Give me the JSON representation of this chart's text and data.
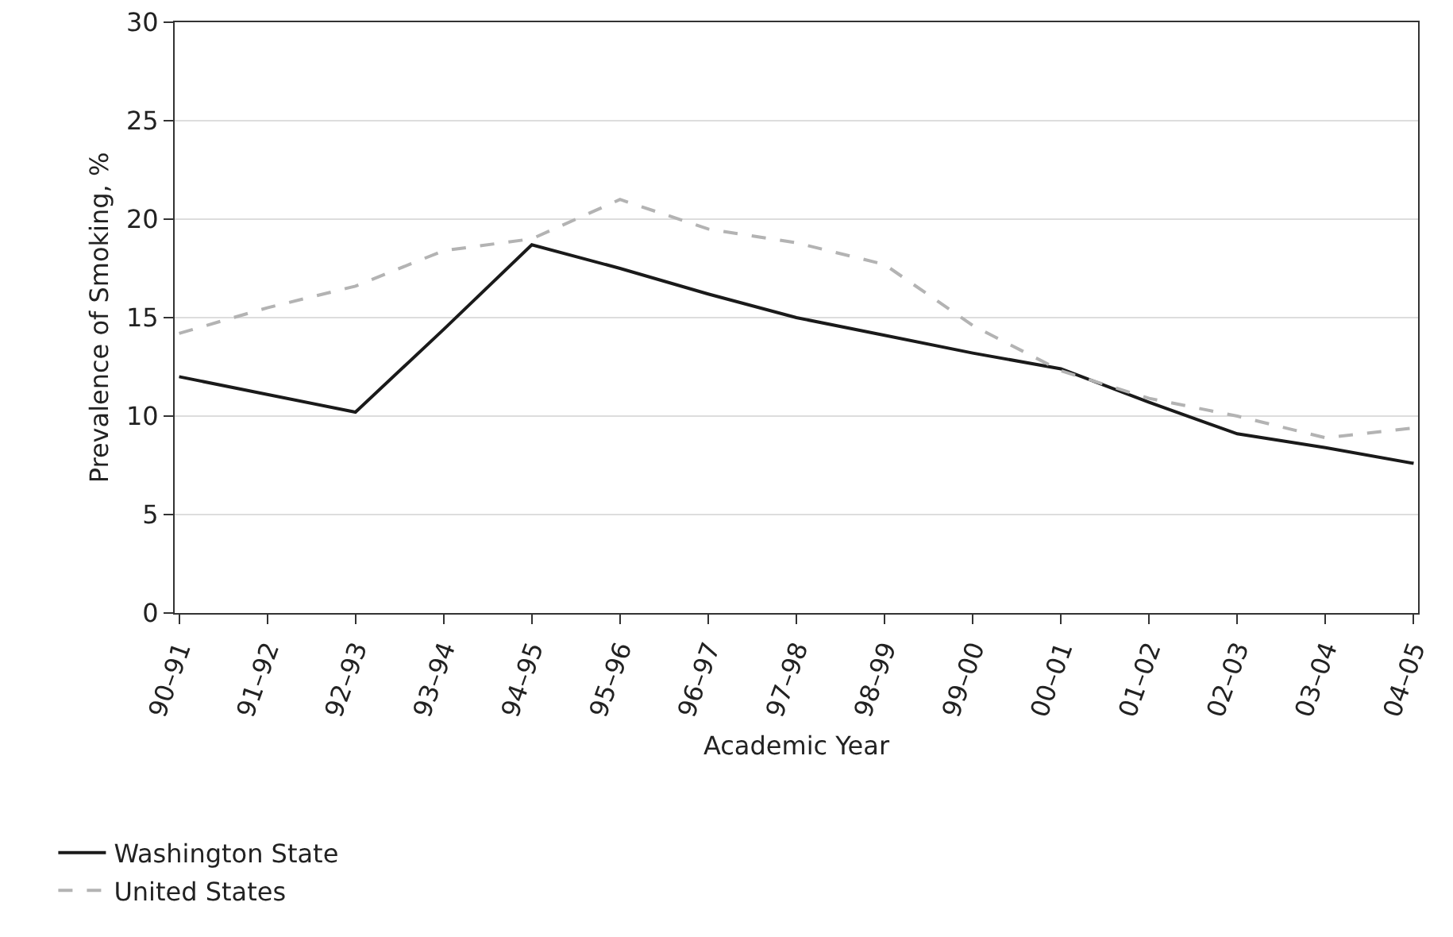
{
  "chart_data": {
    "type": "line",
    "xlabel": "Academic Year",
    "ylabel": "Prevalence of Smoking, %",
    "categories": [
      "90–91",
      "91–92",
      "92–93",
      "93–94",
      "94–95",
      "95–96",
      "96–97",
      "97–98",
      "98–99",
      "99–00",
      "00–01",
      "01–02",
      "02–03",
      "03–04",
      "04–05"
    ],
    "series": [
      {
        "name": "Washington State",
        "color": "#1a1a1a",
        "line_style": "solid",
        "values": [
          12.0,
          11.1,
          10.2,
          14.4,
          18.7,
          17.5,
          16.2,
          15.0,
          14.1,
          13.2,
          12.4,
          10.7,
          9.1,
          8.4,
          7.6
        ]
      },
      {
        "name": "United States",
        "color": "#b3b3b3",
        "line_style": "dashed",
        "values": [
          14.2,
          15.5,
          16.6,
          18.4,
          19.0,
          21.0,
          19.5,
          18.8,
          17.7,
          14.6,
          12.3,
          10.9,
          10.0,
          8.9,
          9.4
        ]
      }
    ],
    "ylim": [
      0,
      30
    ],
    "yticks": [
      0,
      5,
      10,
      15,
      20,
      25,
      30
    ],
    "grid": "y",
    "legend": "bottom left",
    "marker": "none"
  }
}
